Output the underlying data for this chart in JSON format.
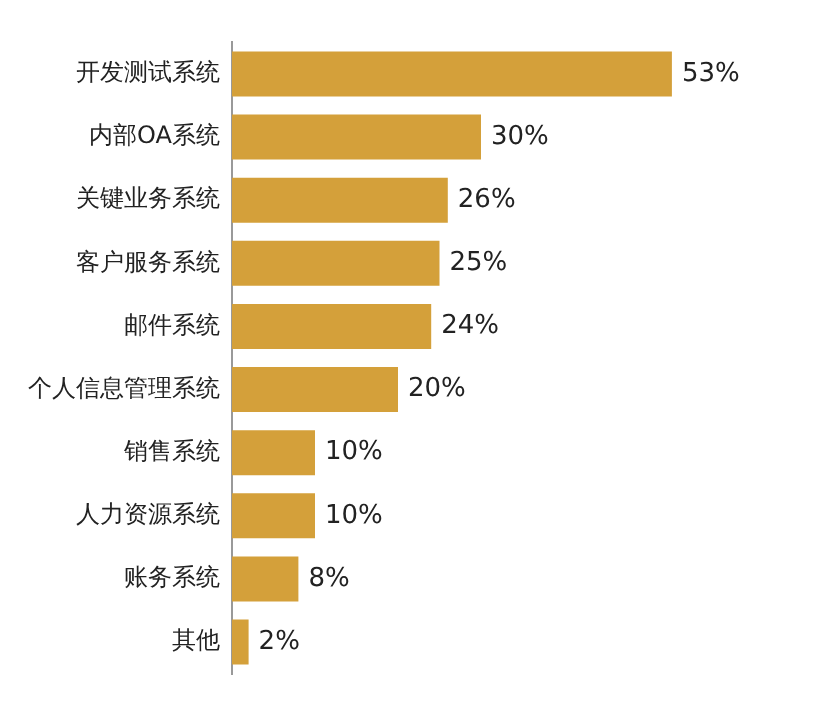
{
  "chart_data": {
    "type": "bar",
    "orientation": "horizontal",
    "categories": [
      "开发测试系统",
      "内部OA系统",
      "关键业务系统",
      "客户服务系统",
      "邮件系统",
      "个人信息管理系统",
      "销售系统",
      "人力资源系统",
      "账务系统",
      "其他"
    ],
    "values": [
      53,
      30,
      26,
      25,
      24,
      20,
      10,
      10,
      8,
      2
    ],
    "value_labels": [
      "53%",
      "30%",
      "26%",
      "25%",
      "24%",
      "20%",
      "10%",
      "10%",
      "8%",
      "2%"
    ],
    "color": "#d4a03a",
    "legend": false,
    "tick_labels": "y"
  }
}
